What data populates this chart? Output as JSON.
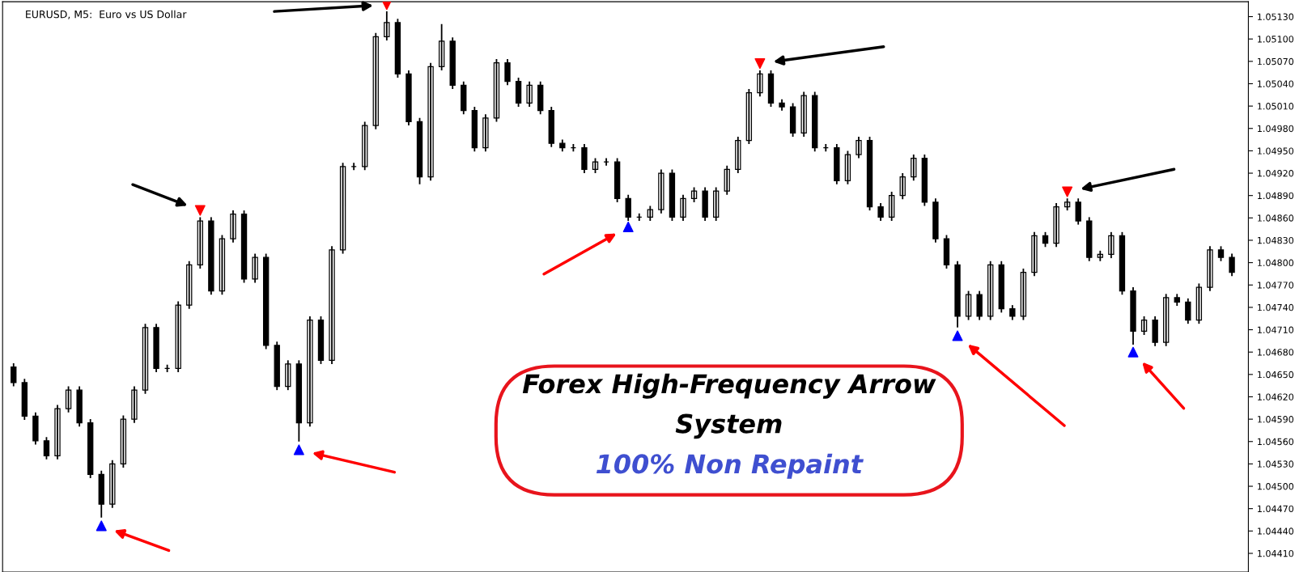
{
  "chart_data": {
    "type": "candlestick",
    "title": "EURUSD, M5:  Euro vs US Dollar",
    "annotations": [
      "Forex High-Frequency Arrow",
      "System",
      "100% Non Repaint"
    ],
    "categories": [
      null,
      null,
      null,
      null,
      null,
      null,
      null,
      null,
      null,
      null,
      null,
      null,
      null,
      null,
      null,
      null,
      null,
      null,
      null,
      null,
      null,
      null,
      null,
      null,
      null,
      null,
      null,
      null,
      null,
      null,
      null,
      null,
      null,
      null,
      null,
      null,
      null,
      null,
      null,
      null,
      null,
      null,
      null,
      null,
      null,
      null,
      null,
      null,
      null,
      null,
      null,
      null,
      null,
      null,
      null,
      null,
      null,
      null,
      null,
      null,
      null,
      null,
      null,
      null,
      null,
      null,
      null,
      null,
      null,
      null,
      null,
      null,
      null,
      null,
      null,
      null,
      null,
      null,
      null,
      null,
      null,
      null,
      null,
      null,
      null,
      null,
      null,
      null,
      null,
      null,
      null,
      null,
      null,
      null,
      null,
      null,
      null,
      null,
      null,
      null,
      null,
      null,
      null,
      null,
      null,
      null,
      null,
      null,
      null,
      null,
      null,
      null
    ],
    "color": "#000000",
    "ohlc": [
      [
        1.0466,
        1.04665,
        1.04634,
        1.04639
      ],
      [
        1.04639,
        1.04644,
        1.04589,
        1.04594
      ],
      [
        1.04594,
        1.04599,
        1.04556,
        1.04561
      ],
      [
        1.04561,
        1.04566,
        1.04536,
        1.04541
      ],
      [
        1.04541,
        1.04609,
        1.04536,
        1.04604
      ],
      [
        1.04604,
        1.04634,
        1.04599,
        1.04629
      ],
      [
        1.04629,
        1.04634,
        1.0458,
        1.04585
      ],
      [
        1.04585,
        1.0459,
        1.04511,
        1.04516
      ],
      [
        1.04516,
        1.04521,
        1.04458,
        1.04476
      ],
      [
        1.04476,
        1.04535,
        1.04471,
        1.0453
      ],
      [
        1.0453,
        1.04595,
        1.04525,
        1.0459
      ],
      [
        1.0459,
        1.04634,
        1.04585,
        1.04629
      ],
      [
        1.04629,
        1.04718,
        1.04624,
        1.04713
      ],
      [
        1.04713,
        1.04718,
        1.04653,
        1.04658
      ],
      [
        1.04658,
        1.04663,
        1.04653,
        1.04658
      ],
      [
        1.04658,
        1.04748,
        1.04653,
        1.04743
      ],
      [
        1.04743,
        1.04802,
        1.04738,
        1.04797
      ],
      [
        1.04797,
        1.04861,
        1.04792,
        1.04856
      ],
      [
        1.04856,
        1.04861,
        1.04757,
        1.04762
      ],
      [
        1.04762,
        1.04837,
        1.04757,
        1.04832
      ],
      [
        1.04832,
        1.0487,
        1.04827,
        1.04865
      ],
      [
        1.04865,
        1.0487,
        1.04773,
        1.04778
      ],
      [
        1.04778,
        1.04812,
        1.04773,
        1.04807
      ],
      [
        1.04807,
        1.04812,
        1.04684,
        1.04689
      ],
      [
        1.04689,
        1.04694,
        1.04629,
        1.04634
      ],
      [
        1.04634,
        1.04669,
        1.04629,
        1.04664
      ],
      [
        1.04664,
        1.04669,
        1.0456,
        1.04585
      ],
      [
        1.04585,
        1.04728,
        1.0458,
        1.04723
      ],
      [
        1.04723,
        1.04728,
        1.04664,
        1.04669
      ],
      [
        1.04669,
        1.04822,
        1.04664,
        1.04817
      ],
      [
        1.04817,
        1.04934,
        1.04812,
        1.04929
      ],
      [
        1.04929,
        1.04934,
        1.04924,
        1.04929
      ],
      [
        1.04929,
        1.04989,
        1.04924,
        1.04984
      ],
      [
        1.04984,
        1.05108,
        1.04979,
        1.05103
      ],
      [
        1.05103,
        1.05137,
        1.05098,
        1.05122
      ],
      [
        1.05122,
        1.05127,
        1.05048,
        1.05053
      ],
      [
        1.05053,
        1.05058,
        1.04984,
        1.04989
      ],
      [
        1.04989,
        1.04994,
        1.04905,
        1.04915
      ],
      [
        1.04915,
        1.05068,
        1.0491,
        1.05063
      ],
      [
        1.05063,
        1.0512,
        1.05058,
        1.05097
      ],
      [
        1.05097,
        1.05102,
        1.05033,
        1.05038
      ],
      [
        1.05038,
        1.05043,
        1.04999,
        1.05004
      ],
      [
        1.05004,
        1.05009,
        1.04949,
        1.04954
      ],
      [
        1.04954,
        1.04999,
        1.04949,
        1.04994
      ],
      [
        1.04994,
        1.05073,
        1.04989,
        1.05068
      ],
      [
        1.05068,
        1.05073,
        1.05038,
        1.05043
      ],
      [
        1.05043,
        1.05048,
        1.05009,
        1.05014
      ],
      [
        1.05014,
        1.05043,
        1.05009,
        1.05038
      ],
      [
        1.05038,
        1.05043,
        1.04999,
        1.05004
      ],
      [
        1.05004,
        1.05009,
        1.04955,
        1.0496
      ],
      [
        1.0496,
        1.04965,
        1.04949,
        1.04954
      ],
      [
        1.04954,
        1.04959,
        1.04949,
        1.04954
      ],
      [
        1.04954,
        1.04959,
        1.0492,
        1.04925
      ],
      [
        1.04925,
        1.0494,
        1.0492,
        1.04935
      ],
      [
        1.04935,
        1.0494,
        1.0493,
        1.04935
      ],
      [
        1.04935,
        1.0494,
        1.04881,
        1.04886
      ],
      [
        1.04886,
        1.04891,
        1.04856,
        1.04861
      ],
      [
        1.04861,
        1.04866,
        1.04856,
        1.04861
      ],
      [
        1.04861,
        1.04876,
        1.04856,
        1.04871
      ],
      [
        1.04871,
        1.04925,
        1.04866,
        1.0492
      ],
      [
        1.0492,
        1.04925,
        1.04856,
        1.04861
      ],
      [
        1.04861,
        1.04891,
        1.04856,
        1.04886
      ],
      [
        1.04886,
        1.04901,
        1.04881,
        1.04896
      ],
      [
        1.04896,
        1.04901,
        1.04856,
        1.04861
      ],
      [
        1.04861,
        1.04901,
        1.04856,
        1.04896
      ],
      [
        1.04896,
        1.0493,
        1.04891,
        1.04925
      ],
      [
        1.04925,
        1.04969,
        1.0492,
        1.04964
      ],
      [
        1.04964,
        1.05033,
        1.04959,
        1.05028
      ],
      [
        1.05028,
        1.05058,
        1.05023,
        1.05053
      ],
      [
        1.05053,
        1.05058,
        1.05009,
        1.05014
      ],
      [
        1.05014,
        1.05019,
        1.05004,
        1.05009
      ],
      [
        1.05009,
        1.05014,
        1.04969,
        1.04974
      ],
      [
        1.04974,
        1.05029,
        1.04969,
        1.05024
      ],
      [
        1.05024,
        1.05029,
        1.04949,
        1.04954
      ],
      [
        1.04954,
        1.04959,
        1.04949,
        1.04954
      ],
      [
        1.04954,
        1.04959,
        1.04905,
        1.0491
      ],
      [
        1.0491,
        1.0495,
        1.04905,
        1.04945
      ],
      [
        1.04945,
        1.04969,
        1.0494,
        1.04964
      ],
      [
        1.04964,
        1.04969,
        1.0487,
        1.04875
      ],
      [
        1.04875,
        1.0488,
        1.04856,
        1.04861
      ],
      [
        1.04861,
        1.04895,
        1.04856,
        1.0489
      ],
      [
        1.0489,
        1.0492,
        1.04885,
        1.04915
      ],
      [
        1.04915,
        1.04945,
        1.0491,
        1.0494
      ],
      [
        1.0494,
        1.04945,
        1.04876,
        1.04881
      ],
      [
        1.04881,
        1.04886,
        1.04827,
        1.04832
      ],
      [
        1.04832,
        1.04837,
        1.04792,
        1.04797
      ],
      [
        1.04797,
        1.04802,
        1.04713,
        1.04728
      ],
      [
        1.04728,
        1.04762,
        1.04723,
        1.04757
      ],
      [
        1.04757,
        1.04762,
        1.04723,
        1.04728
      ],
      [
        1.04728,
        1.04802,
        1.04723,
        1.04797
      ],
      [
        1.04797,
        1.04802,
        1.04733,
        1.04738
      ],
      [
        1.04738,
        1.04743,
        1.04723,
        1.04728
      ],
      [
        1.04728,
        1.04792,
        1.04723,
        1.04787
      ],
      [
        1.04787,
        1.04841,
        1.04782,
        1.04836
      ],
      [
        1.04836,
        1.04841,
        1.04821,
        1.04826
      ],
      [
        1.04826,
        1.0488,
        1.04821,
        1.04875
      ],
      [
        1.04875,
        1.04886,
        1.0487,
        1.04881
      ],
      [
        1.04881,
        1.04886,
        1.04851,
        1.04856
      ],
      [
        1.04856,
        1.04861,
        1.04802,
        1.04807
      ],
      [
        1.04807,
        1.04816,
        1.04802,
        1.04811
      ],
      [
        1.04811,
        1.04841,
        1.04806,
        1.04836
      ],
      [
        1.04836,
        1.04841,
        1.04757,
        1.04762
      ],
      [
        1.04762,
        1.04767,
        1.0469,
        1.04708
      ],
      [
        1.04708,
        1.04728,
        1.04703,
        1.04723
      ],
      [
        1.04723,
        1.04728,
        1.04688,
        1.04693
      ],
      [
        1.04693,
        1.04758,
        1.04688,
        1.04753
      ],
      [
        1.04753,
        1.04758,
        1.04742,
        1.04747
      ],
      [
        1.04747,
        1.04752,
        1.04718,
        1.04723
      ],
      [
        1.04723,
        1.04772,
        1.04718,
        1.04767
      ],
      [
        1.04767,
        1.04822,
        1.04762,
        1.04817
      ],
      [
        1.04817,
        1.04822,
        1.04802,
        1.04807
      ],
      [
        1.04807,
        1.04812,
        1.04782,
        1.04787
      ]
    ],
    "series": [
      {
        "type": "scatter",
        "marker": "triangle",
        "color": "#0000ff",
        "values": [
          null,
          null,
          null,
          null,
          null,
          null,
          null,
          null,
          1.04447,
          null,
          null,
          null,
          null,
          null,
          null,
          null,
          null,
          null,
          null,
          null,
          null,
          null,
          null,
          null,
          null,
          null,
          1.04549,
          null,
          null,
          null,
          null,
          null,
          null,
          null,
          null,
          null,
          null,
          null,
          null,
          null,
          null,
          null,
          null,
          null,
          null,
          null,
          null,
          null,
          null,
          null,
          null,
          null,
          null,
          null,
          null,
          null,
          1.04848,
          null,
          null,
          null,
          null,
          null,
          null,
          null,
          null,
          null,
          null,
          null,
          null,
          null,
          null,
          null,
          null,
          null,
          null,
          null,
          null,
          null,
          null,
          null,
          null,
          null,
          null,
          null,
          null,
          null,
          1.04702,
          null,
          null,
          null,
          null,
          null,
          null,
          null,
          null,
          null,
          null,
          null,
          null,
          null,
          null,
          null,
          1.0468,
          null,
          null,
          null,
          null,
          null,
          null,
          null,
          null,
          null
        ]
      },
      {
        "type": "scatter",
        "marker": "triangle",
        "color": "#ff0000",
        "values": [
          null,
          null,
          null,
          null,
          null,
          null,
          null,
          null,
          null,
          null,
          null,
          null,
          null,
          null,
          null,
          null,
          null,
          1.0487,
          null,
          null,
          null,
          null,
          null,
          null,
          null,
          null,
          null,
          null,
          null,
          null,
          null,
          null,
          null,
          null,
          1.05146,
          null,
          null,
          null,
          null,
          null,
          null,
          null,
          null,
          null,
          null,
          null,
          null,
          null,
          null,
          null,
          null,
          null,
          null,
          null,
          null,
          null,
          null,
          null,
          null,
          null,
          null,
          null,
          null,
          null,
          null,
          null,
          null,
          null,
          1.05067,
          null,
          null,
          null,
          null,
          null,
          null,
          null,
          null,
          null,
          null,
          null,
          null,
          null,
          null,
          null,
          null,
          null,
          null,
          null,
          null,
          null,
          null,
          null,
          null,
          null,
          null,
          null,
          1.04895,
          null,
          null,
          null,
          null,
          null,
          null,
          null,
          null,
          null,
          null,
          null,
          null,
          null,
          null,
          null
        ]
      }
    ],
    "ylim": [
      1.04385,
      1.0515
    ],
    "yticks": [
      {
        "value": 1.0441,
        "label": "1.04410"
      },
      {
        "value": 1.0444,
        "label": "1.04440"
      },
      {
        "value": 1.0447,
        "label": "1.04470"
      },
      {
        "value": 1.045,
        "label": "1.04500"
      },
      {
        "value": 1.0453,
        "label": "1.04530"
      },
      {
        "value": 1.0456,
        "label": "1.04560"
      },
      {
        "value": 1.0459,
        "label": "1.04590"
      },
      {
        "value": 1.0462,
        "label": "1.04620"
      },
      {
        "value": 1.0465,
        "label": "1.04650"
      },
      {
        "value": 1.0468,
        "label": "1.04680"
      },
      {
        "value": 1.0471,
        "label": "1.04710"
      },
      {
        "value": 1.0474,
        "label": "1.04740"
      },
      {
        "value": 1.0477,
        "label": "1.04770"
      },
      {
        "value": 1.048,
        "label": "1.04800"
      },
      {
        "value": 1.0483,
        "label": "1.04830"
      },
      {
        "value": 1.0486,
        "label": "1.04860"
      },
      {
        "value": 1.0489,
        "label": "1.04890"
      },
      {
        "value": 1.0492,
        "label": "1.04920"
      },
      {
        "value": 1.0495,
        "label": "1.04950"
      },
      {
        "value": 1.0498,
        "label": "1.04980"
      },
      {
        "value": 1.0501,
        "label": "1.05010"
      },
      {
        "value": 1.0504,
        "label": "1.05040"
      },
      {
        "value": 1.0507,
        "label": "1.05070"
      },
      {
        "value": 1.051,
        "label": "1.05100"
      },
      {
        "value": 1.0513,
        "label": "1.05130"
      }
    ],
    "tick_labels": "y",
    "grid": false,
    "legend": false
  }
}
